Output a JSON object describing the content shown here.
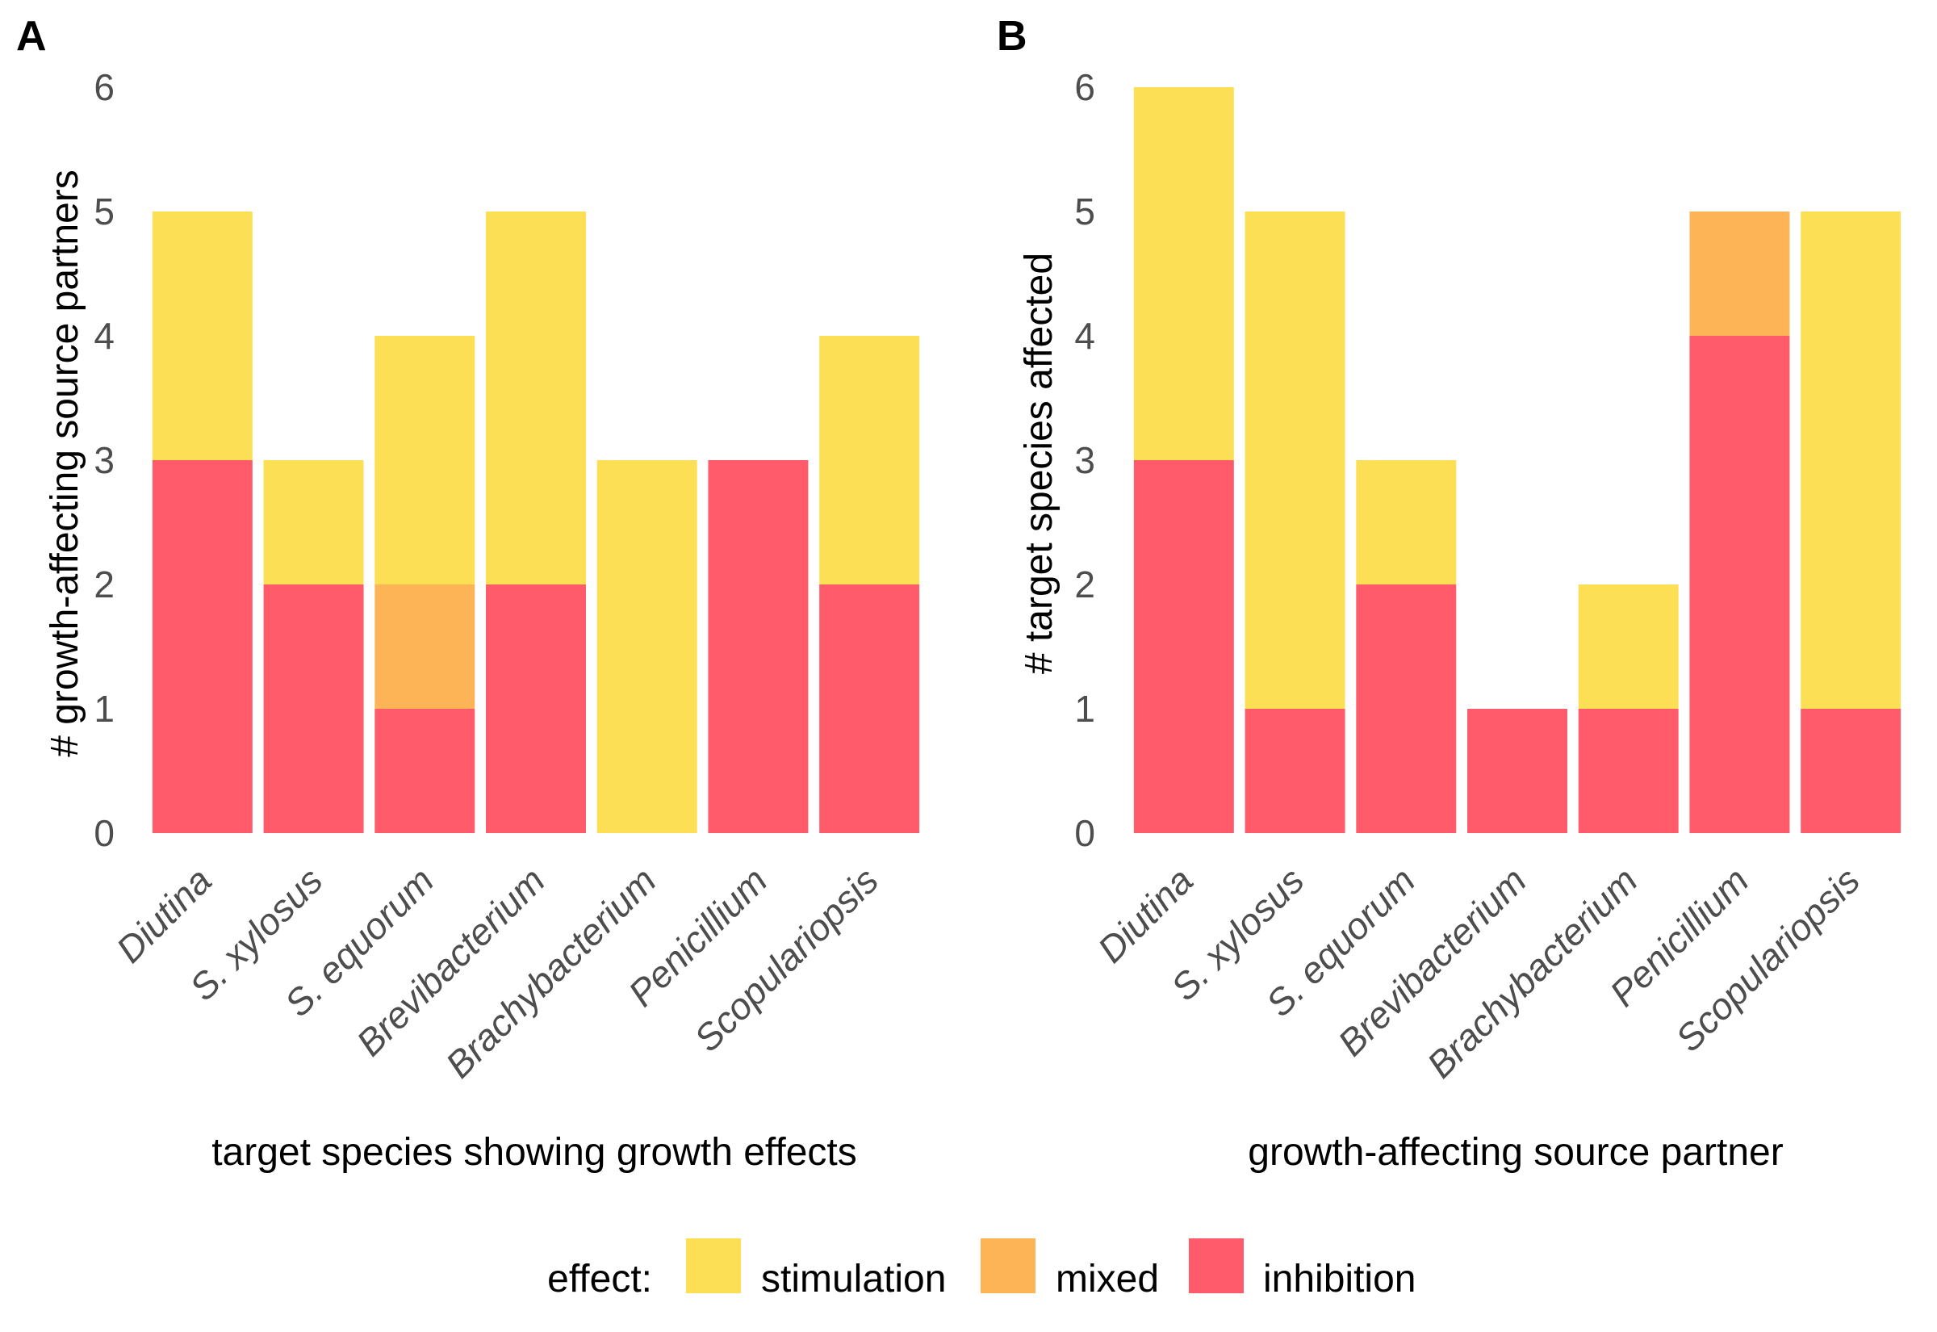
{
  "colors": {
    "stimulation": "#FDDF55",
    "mixed": "#FDB456",
    "inhibition": "#FF5B6A"
  },
  "legend": {
    "title": "effect:",
    "items": [
      {
        "key": "stimulation",
        "label": "stimulation"
      },
      {
        "key": "mixed",
        "label": "mixed"
      },
      {
        "key": "inhibition",
        "label": "inhibition"
      }
    ]
  },
  "chart_data": [
    {
      "type": "bar",
      "stacked": true,
      "panel": "A",
      "categories": [
        "Diutina",
        "S. xylosus",
        "S. equorum",
        "Brevibacterium",
        "Brachybacterium",
        "Penicillium",
        "Scopulariopsis"
      ],
      "series": [
        {
          "name": "inhibition",
          "values": [
            3,
            2,
            1,
            2,
            0,
            3,
            2
          ]
        },
        {
          "name": "mixed",
          "values": [
            0,
            0,
            1,
            0,
            0,
            0,
            0
          ]
        },
        {
          "name": "stimulation",
          "values": [
            2,
            1,
            2,
            3,
            3,
            0,
            2
          ]
        }
      ],
      "title": "",
      "xlabel": "target species showing growth effects",
      "ylabel": "# growth-affecting source partners",
      "ylim": [
        0,
        6
      ],
      "yticks": [
        "0",
        "1",
        "2",
        "3",
        "4",
        "5",
        "6"
      ],
      "grid": false
    },
    {
      "type": "bar",
      "stacked": true,
      "panel": "B",
      "categories": [
        "Diutina",
        "S. xylosus",
        "S. equorum",
        "Brevibacterium",
        "Brachybacterium",
        "Penicillium",
        "Scopulariopsis"
      ],
      "series": [
        {
          "name": "inhibition",
          "values": [
            3,
            1,
            2,
            1,
            1,
            4,
            1
          ]
        },
        {
          "name": "mixed",
          "values": [
            0,
            0,
            0,
            0,
            0,
            1,
            0
          ]
        },
        {
          "name": "stimulation",
          "values": [
            3,
            4,
            1,
            0,
            1,
            0,
            4
          ]
        }
      ],
      "title": "",
      "xlabel": "growth-affecting source partner",
      "ylabel": "# target species affected",
      "ylim": [
        0,
        6
      ],
      "yticks": [
        "0",
        "1",
        "2",
        "3",
        "4",
        "5",
        "6"
      ],
      "grid": false
    }
  ]
}
